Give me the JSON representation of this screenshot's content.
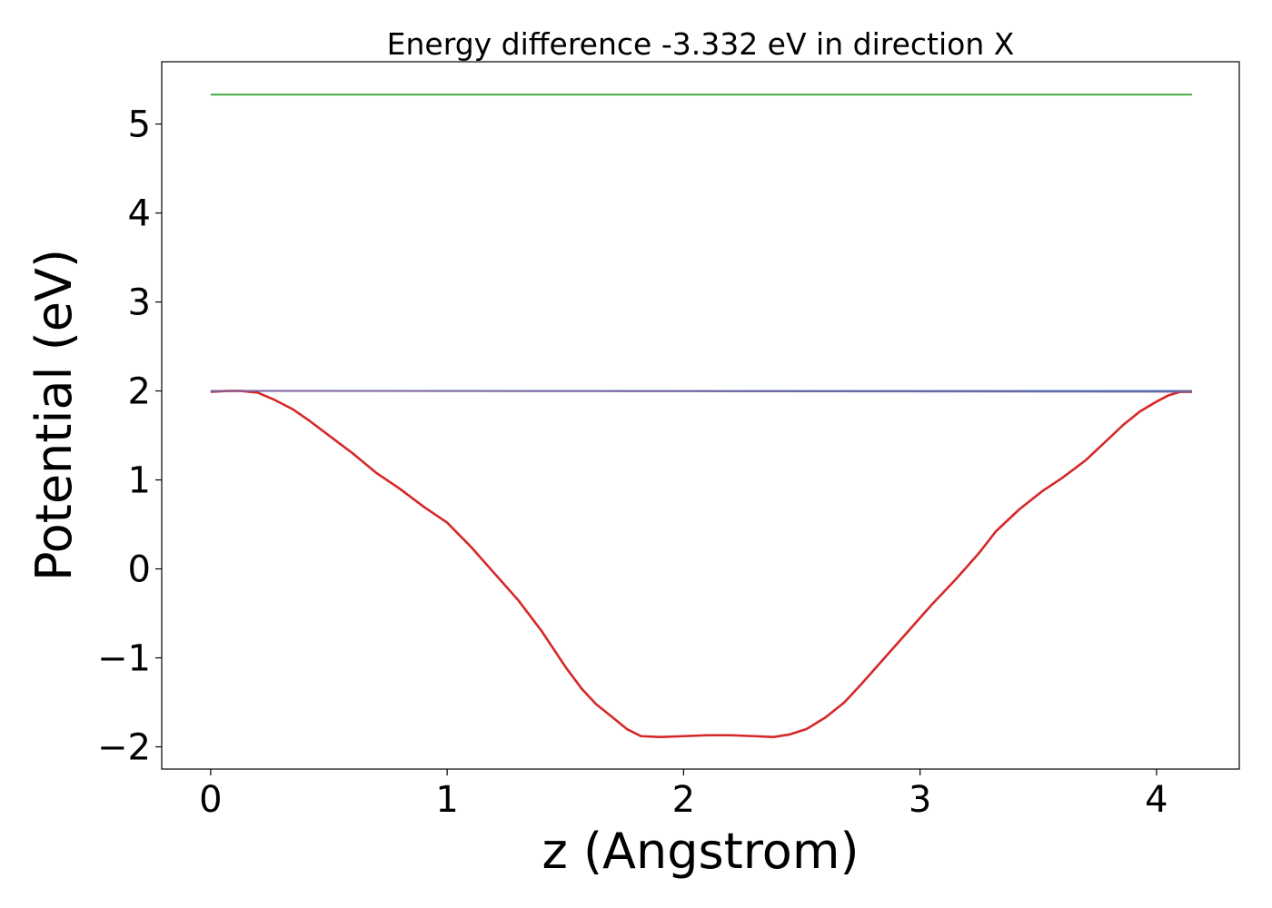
{
  "chart_data": {
    "type": "line",
    "title": "Energy difference -3.332 eV in direction X",
    "xlabel": "z (Angstrom)",
    "ylabel": "Potential (eV)",
    "xlim": [
      -0.207,
      4.35
    ],
    "ylim": [
      -2.25,
      5.7
    ],
    "xticks": [
      0,
      1,
      2,
      3,
      4
    ],
    "yticks": [
      -2,
      -1,
      0,
      1,
      2,
      3,
      4,
      5
    ],
    "xtick_labels": [
      "0",
      "1",
      "2",
      "3",
      "4"
    ],
    "ytick_labels": [
      "−2",
      "−1",
      "0",
      "1",
      "2",
      "3",
      "4",
      "5"
    ],
    "grid": false,
    "series": [
      {
        "color": "#2ca02c",
        "points": [
          [
            0,
            5.33
          ],
          [
            4.15,
            5.33
          ]
        ]
      },
      {
        "color": "#1f77b4",
        "points": [
          [
            0,
            2.0
          ],
          [
            4.15,
            2.0
          ]
        ]
      },
      {
        "color": "#d62728",
        "points": [
          [
            0.0,
            1.99
          ],
          [
            0.07,
            2.0
          ],
          [
            0.13,
            2.0
          ],
          [
            0.2,
            1.98
          ],
          [
            0.27,
            1.9
          ],
          [
            0.35,
            1.79
          ],
          [
            0.42,
            1.66
          ],
          [
            0.5,
            1.5
          ],
          [
            0.6,
            1.3
          ],
          [
            0.7,
            1.08
          ],
          [
            0.8,
            0.9
          ],
          [
            0.9,
            0.7
          ],
          [
            1.0,
            0.52
          ],
          [
            1.1,
            0.25
          ],
          [
            1.2,
            -0.05
          ],
          [
            1.3,
            -0.35
          ],
          [
            1.4,
            -0.7
          ],
          [
            1.5,
            -1.1
          ],
          [
            1.57,
            -1.35
          ],
          [
            1.63,
            -1.52
          ],
          [
            1.7,
            -1.67
          ],
          [
            1.76,
            -1.8
          ],
          [
            1.82,
            -1.88
          ],
          [
            1.9,
            -1.89
          ],
          [
            2.0,
            -1.88
          ],
          [
            2.1,
            -1.87
          ],
          [
            2.2,
            -1.87
          ],
          [
            2.3,
            -1.88
          ],
          [
            2.38,
            -1.89
          ],
          [
            2.45,
            -1.86
          ],
          [
            2.52,
            -1.8
          ],
          [
            2.6,
            -1.67
          ],
          [
            2.68,
            -1.5
          ],
          [
            2.75,
            -1.3
          ],
          [
            2.85,
            -1.0
          ],
          [
            2.95,
            -0.7
          ],
          [
            3.05,
            -0.4
          ],
          [
            3.15,
            -0.12
          ],
          [
            3.25,
            0.18
          ],
          [
            3.32,
            0.42
          ],
          [
            3.42,
            0.67
          ],
          [
            3.52,
            0.88
          ],
          [
            3.6,
            1.02
          ],
          [
            3.7,
            1.22
          ],
          [
            3.78,
            1.42
          ],
          [
            3.86,
            1.62
          ],
          [
            3.93,
            1.77
          ],
          [
            4.0,
            1.88
          ],
          [
            4.05,
            1.95
          ],
          [
            4.1,
            1.99
          ],
          [
            4.15,
            1.99
          ]
        ]
      },
      {
        "color": "#7f5fa0",
        "points": [
          [
            0.0,
            1.99
          ],
          [
            0.08,
            2.0
          ],
          [
            0.14,
            2.0
          ],
          [
            4.04,
            1.99
          ],
          [
            4.15,
            1.99
          ]
        ]
      }
    ]
  }
}
